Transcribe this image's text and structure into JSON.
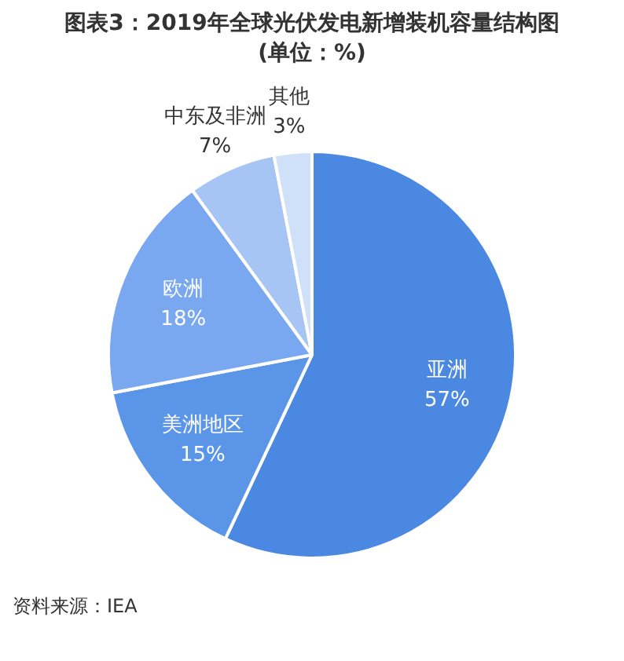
{
  "chart_data": {
    "type": "pie",
    "title": "图表3：2019年全球光伏发电新增装机容量结构图",
    "subtitle": "(单位：%)",
    "categories": [
      "亚洲",
      "美洲地区",
      "欧洲",
      "中东及非洲",
      "其他"
    ],
    "values": [
      57,
      15,
      18,
      7,
      3
    ],
    "value_labels": [
      "57%",
      "15%",
      "18%",
      "7%",
      "3%"
    ],
    "colors": [
      "#4a88e2",
      "#5b95e8",
      "#7aa8f0",
      "#a6c4f4",
      "#cfe0f9"
    ],
    "legend": false,
    "annotations": [
      "资料来源：IEA"
    ]
  }
}
